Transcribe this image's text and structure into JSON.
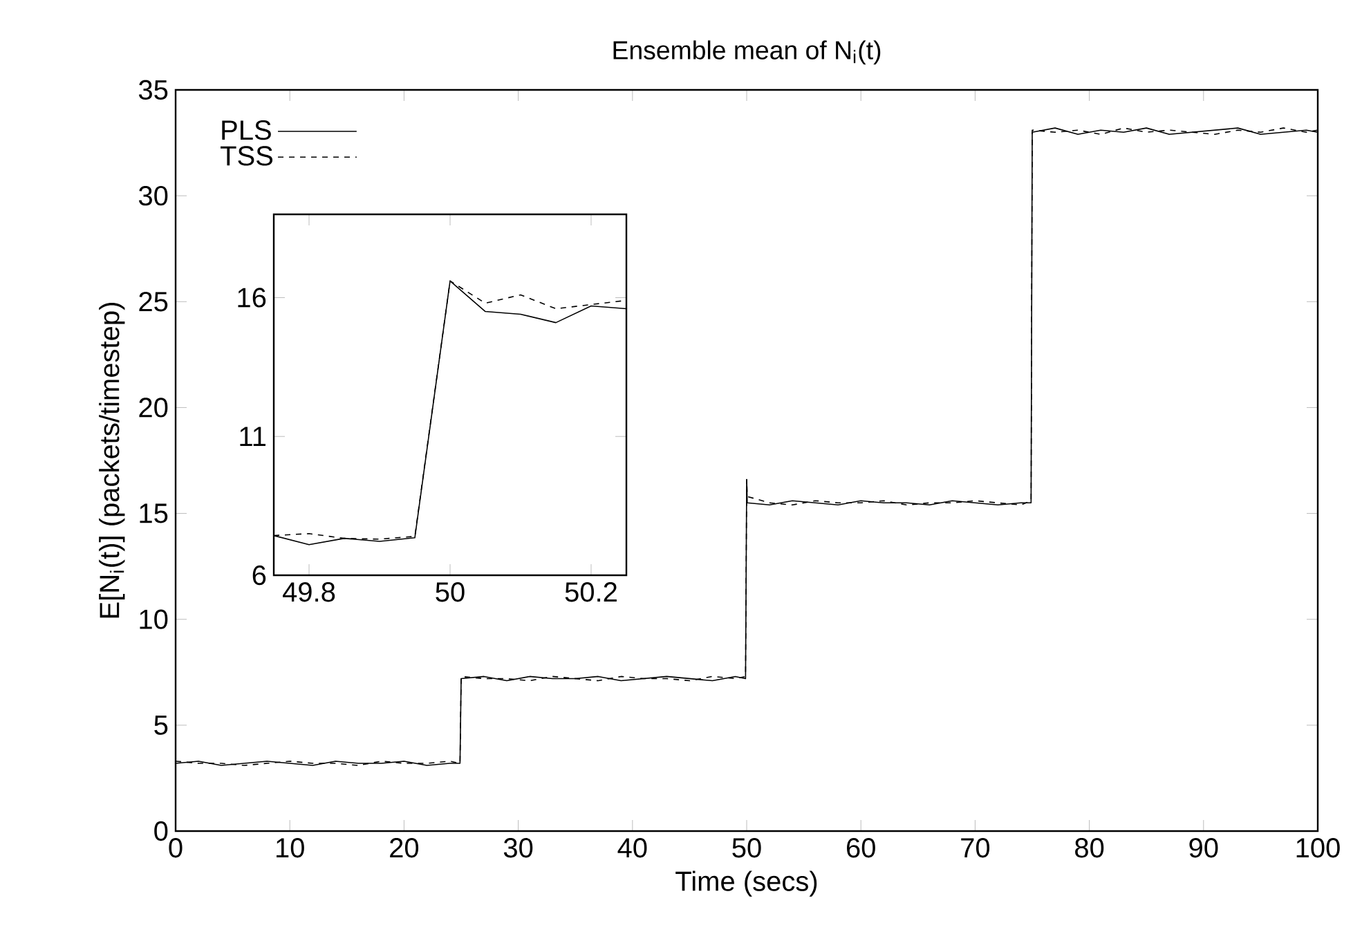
{
  "chart_data": [
    {
      "type": "line",
      "title": "Ensemble mean of N$_{i}$(t)",
      "xlabel": "Time (secs)",
      "ylabel": "E[N$_{i}$(t)] (packets/timestep)",
      "x": [
        0,
        2,
        4,
        6,
        8,
        10,
        12,
        14,
        16,
        18,
        20,
        22,
        24,
        24.9,
        25,
        27,
        29,
        31,
        33,
        35,
        37,
        39,
        41,
        43,
        45,
        47,
        49,
        49.9,
        50,
        50.05,
        52,
        54,
        56,
        58,
        60,
        62,
        64,
        66,
        68,
        70,
        72,
        74,
        74.9,
        75,
        77,
        79,
        81,
        83,
        85,
        87,
        89,
        91,
        93,
        95,
        97,
        99,
        100
      ],
      "series": [
        {
          "name": "PLS",
          "color": "#000000",
          "line_style": "solid",
          "values": [
            3.2,
            3.3,
            3.1,
            3.2,
            3.3,
            3.2,
            3.1,
            3.3,
            3.2,
            3.2,
            3.3,
            3.1,
            3.2,
            3.2,
            7.2,
            7.3,
            7.1,
            7.3,
            7.2,
            7.2,
            7.3,
            7.1,
            7.2,
            7.3,
            7.2,
            7.1,
            7.3,
            7.2,
            16.6,
            15.5,
            15.4,
            15.6,
            15.5,
            15.4,
            15.6,
            15.5,
            15.5,
            15.4,
            15.6,
            15.5,
            15.4,
            15.5,
            15.5,
            33.0,
            33.2,
            32.9,
            33.1,
            33.0,
            33.2,
            32.9,
            33.0,
            33.1,
            33.2,
            32.9,
            33.0,
            33.1,
            33.0
          ]
        },
        {
          "name": "TSS",
          "color": "#000000",
          "line_style": "dashed",
          "values": [
            3.3,
            3.2,
            3.2,
            3.1,
            3.2,
            3.3,
            3.2,
            3.2,
            3.1,
            3.3,
            3.2,
            3.2,
            3.3,
            3.2,
            7.3,
            7.2,
            7.2,
            7.1,
            7.3,
            7.2,
            7.1,
            7.3,
            7.2,
            7.2,
            7.1,
            7.3,
            7.2,
            7.3,
            16.6,
            15.8,
            15.5,
            15.4,
            15.6,
            15.5,
            15.5,
            15.6,
            15.4,
            15.5,
            15.5,
            15.6,
            15.5,
            15.4,
            15.6,
            33.1,
            33.0,
            33.1,
            32.9,
            33.2,
            33.0,
            33.1,
            33.0,
            32.9,
            33.1,
            33.0,
            33.2,
            33.0,
            33.1
          ]
        }
      ],
      "xlim": [
        0,
        100
      ],
      "xticks": [
        0,
        10,
        20,
        30,
        40,
        50,
        60,
        70,
        80,
        90,
        100
      ],
      "ylim": [
        0,
        35
      ],
      "yticks": [
        0,
        5,
        10,
        15,
        20,
        25,
        30,
        35
      ],
      "legend": "top left"
    },
    {
      "type": "line",
      "x": [
        49.75,
        49.8,
        49.85,
        49.9,
        49.95,
        50,
        50.05,
        50.1,
        50.15,
        50.2,
        50.25
      ],
      "series": [
        {
          "color": "#000000",
          "line_style": "solid",
          "values": [
            7.43,
            7.1,
            7.33,
            7.22,
            7.35,
            16.6,
            15.5,
            15.4,
            15.1,
            15.7,
            15.6
          ]
        },
        {
          "color": "#000000",
          "line_style": "dashed",
          "values": [
            7.43,
            7.5,
            7.33,
            7.3,
            7.4,
            16.6,
            15.8,
            16.1,
            15.6,
            15.75,
            15.9
          ]
        }
      ],
      "xlim": [
        49.75,
        50.25
      ],
      "xticks": [
        49.8,
        50,
        50.2
      ],
      "ylim": [
        6,
        19
      ],
      "yticks": [
        6,
        11,
        16
      ]
    }
  ]
}
